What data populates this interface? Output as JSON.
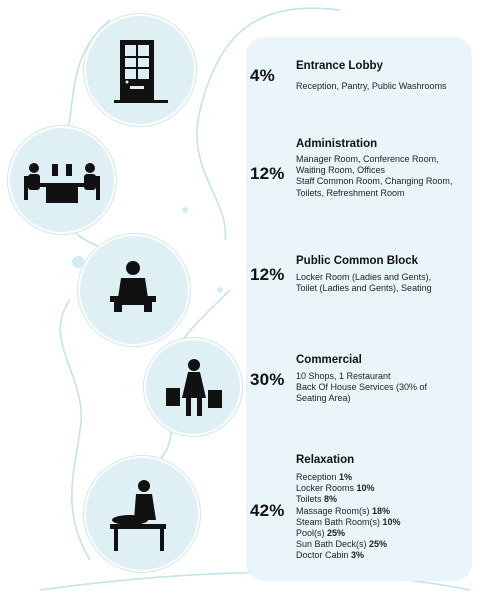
{
  "sections": [
    {
      "percent": "4%",
      "title": "Entrance Lobby",
      "lines": [
        "Reception, Pantry, Public Washrooms"
      ],
      "icon": "door-icon"
    },
    {
      "percent": "12%",
      "title": "Administration",
      "lines": [
        "Manager Room, Conference Room,",
        "Waiting Room, Offices",
        "Staff Common Room, Changing Room,",
        "Toilets, Refreshment Room"
      ],
      "icon": "meeting-icon"
    },
    {
      "percent": "12%",
      "title": "Public Common Block",
      "lines": [
        "Locker Room (Ladies and Gents),",
        "Toilet (Ladies and Gents), Seating"
      ],
      "icon": "seated-person-icon"
    },
    {
      "percent": "30%",
      "title": "Commercial",
      "lines": [
        "10 Shops, 1 Restaurant",
        "Back Of House Services (30% of",
        "Seating Area)"
      ],
      "icon": "shopper-icon"
    },
    {
      "percent": "42%",
      "title": "Relaxation",
      "items": [
        {
          "name": "Reception",
          "value": "1%"
        },
        {
          "name": "Locker Rooms",
          "value": "10%"
        },
        {
          "name": "Toilets",
          "value": "8%"
        },
        {
          "name": "Massage Room(s)",
          "value": "18%"
        },
        {
          "name": "Steam Bath Room(s)",
          "value": "10%"
        },
        {
          "name": "Pool(s)",
          "value": "25%"
        },
        {
          "name": "Sun Bath Deck(s)",
          "value": "25%"
        },
        {
          "name": "Doctor Cabin",
          "value": "3%"
        }
      ],
      "icon": "massage-icon"
    }
  ],
  "colors": {
    "panel": "#e9f5f8",
    "circle": "#dff0f5",
    "path": "#c4e2ec",
    "icon": "#111111"
  }
}
